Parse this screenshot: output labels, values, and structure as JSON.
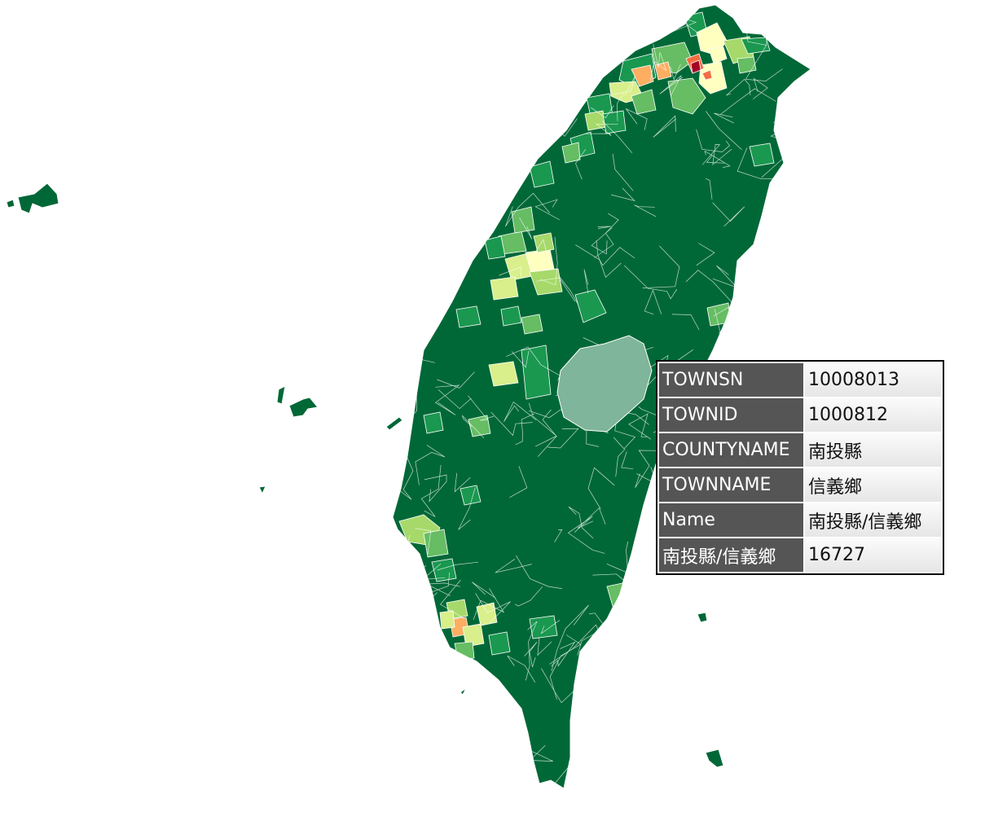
{
  "colors": {
    "very_low": "#006837",
    "low": "#1a9850",
    "mid_low": "#66bd63",
    "mid": "#a6d96a",
    "mid_high": "#d9ef8b",
    "high": "#ffffbf",
    "higher": "#fdae61",
    "very_high": "#f46d43",
    "max": "#a50026",
    "selected": "#7fb59a",
    "border": "#ffffff"
  },
  "info": {
    "rows": [
      {
        "key": "TOWNSN",
        "value": "10008013"
      },
      {
        "key": "TOWNID",
        "value": "1000812"
      },
      {
        "key": "COUNTYNAME",
        "value": "南投縣"
      },
      {
        "key": "TOWNNAME",
        "value": "信義鄉"
      },
      {
        "key": "Name",
        "value": "南投縣/信義鄉"
      },
      {
        "key": "南投縣/信義鄉",
        "value": "16727"
      }
    ]
  }
}
